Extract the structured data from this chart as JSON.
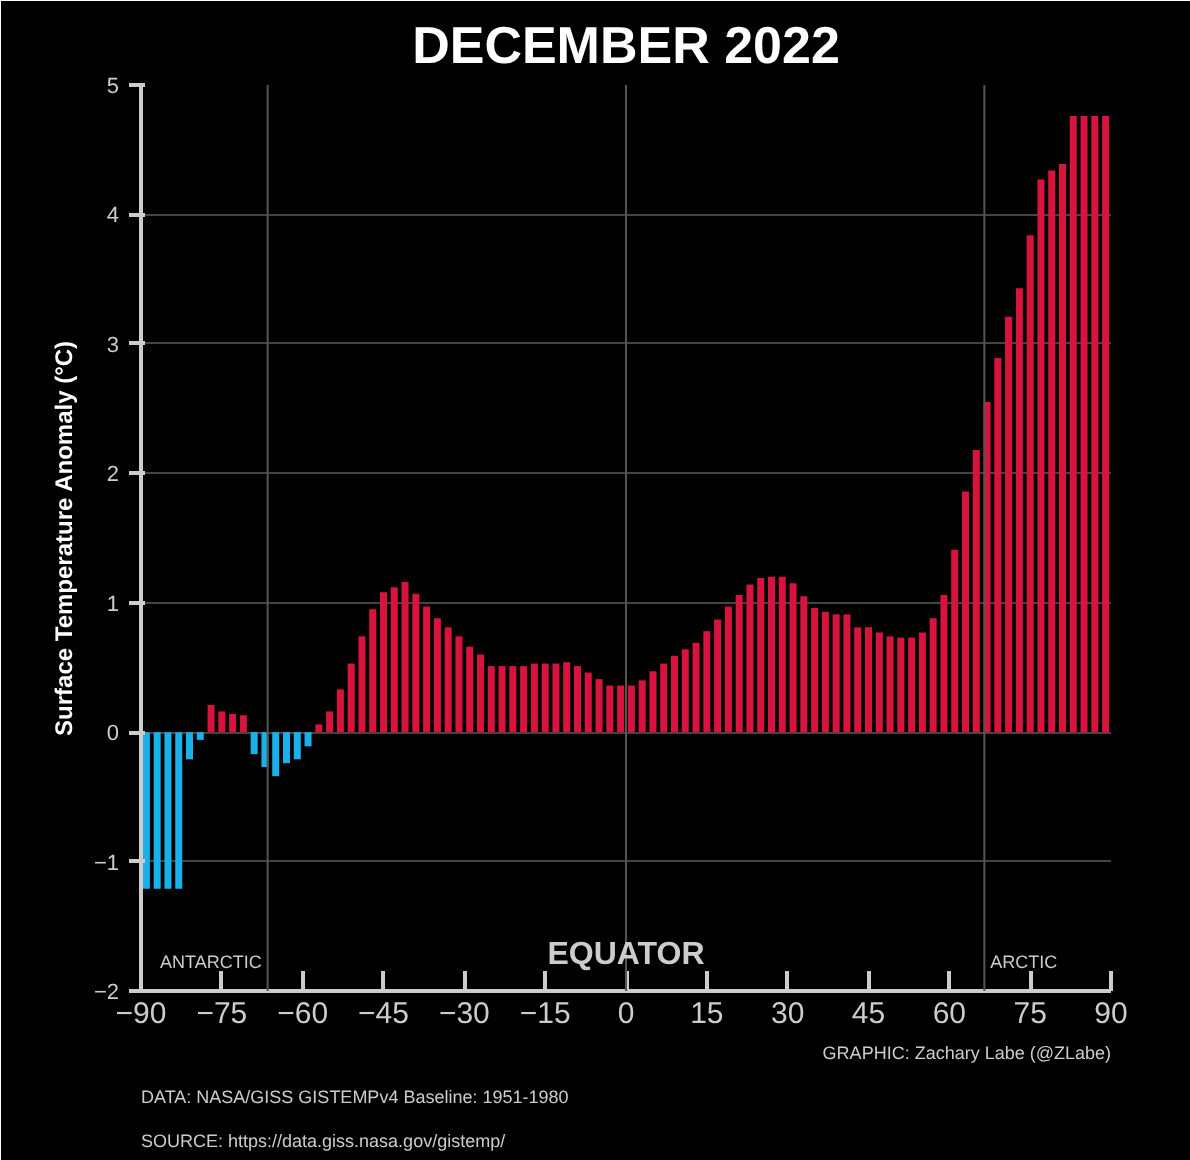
{
  "chart_data": {
    "type": "bar",
    "title": "DECEMBER 2022",
    "ylabel": "Surface Temperature Anomaly (°C)",
    "x": [
      -89,
      -87,
      -85,
      -83,
      -81,
      -79,
      -77,
      -75,
      -73,
      -71,
      -69,
      -67,
      -65,
      -63,
      -61,
      -59,
      -57,
      -55,
      -53,
      -51,
      -49,
      -47,
      -45,
      -43,
      -41,
      -39,
      -37,
      -35,
      -33,
      -31,
      -29,
      -27,
      -25,
      -23,
      -21,
      -19,
      -17,
      -15,
      -13,
      -11,
      -9,
      -7,
      -5,
      -3,
      -1,
      1,
      3,
      5,
      7,
      9,
      11,
      13,
      15,
      17,
      19,
      21,
      23,
      25,
      27,
      29,
      31,
      33,
      35,
      37,
      39,
      41,
      43,
      45,
      47,
      49,
      51,
      53,
      55,
      57,
      59,
      61,
      63,
      65,
      67,
      69,
      71,
      73,
      75,
      77,
      79,
      81,
      83,
      85,
      87,
      89
    ],
    "values": [
      -1.21,
      -1.21,
      -1.21,
      -1.21,
      -0.21,
      -0.06,
      0.21,
      0.16,
      0.14,
      0.13,
      -0.17,
      -0.27,
      -0.34,
      -0.24,
      -0.21,
      -0.11,
      0.06,
      0.16,
      0.33,
      0.53,
      0.74,
      0.95,
      1.08,
      1.12,
      1.16,
      1.07,
      0.97,
      0.88,
      0.81,
      0.74,
      0.66,
      0.6,
      0.51,
      0.51,
      0.51,
      0.51,
      0.53,
      0.53,
      0.53,
      0.54,
      0.51,
      0.46,
      0.41,
      0.36,
      0.36,
      0.36,
      0.4,
      0.47,
      0.53,
      0.59,
      0.64,
      0.69,
      0.78,
      0.87,
      0.97,
      1.06,
      1.14,
      1.19,
      1.2,
      1.2,
      1.15,
      1.05,
      0.96,
      0.93,
      0.91,
      0.91,
      0.81,
      0.81,
      0.77,
      0.74,
      0.73,
      0.73,
      0.77,
      0.88,
      1.06,
      1.41,
      1.86,
      2.18,
      2.55,
      2.89,
      3.21,
      3.43,
      3.84,
      4.27,
      4.34,
      4.39,
      4.76,
      4.76,
      4.76,
      4.76
    ],
    "colors": [
      "#1ab0ea",
      "#1ab0ea",
      "#1ab0ea",
      "#1ab0ea",
      "#1ab0ea",
      "#1ab0ea",
      "#d8143e",
      "#d8143e",
      "#d8143e",
      "#d8143e",
      "#1ab0ea",
      "#1ab0ea",
      "#1ab0ea",
      "#1ab0ea",
      "#1ab0ea",
      "#1ab0ea",
      "#d8143e",
      "#d8143e",
      "#d8143e",
      "#d8143e",
      "#d8143e",
      "#d8143e",
      "#d8143e",
      "#d8143e",
      "#d8143e",
      "#d8143e",
      "#d8143e",
      "#d8143e",
      "#d8143e",
      "#d8143e",
      "#d8143e",
      "#d8143e",
      "#d8143e",
      "#d8143e",
      "#d8143e",
      "#d8143e",
      "#d8143e",
      "#d8143e",
      "#d8143e",
      "#d8143e",
      "#d8143e",
      "#d8143e",
      "#d8143e",
      "#d8143e",
      "#d8143e",
      "#d8143e",
      "#d8143e",
      "#d8143e",
      "#d8143e",
      "#d8143e",
      "#d8143e",
      "#d8143e",
      "#d8143e",
      "#d8143e",
      "#d8143e",
      "#d8143e",
      "#d8143e",
      "#d8143e",
      "#d8143e",
      "#d8143e",
      "#d8143e",
      "#d8143e",
      "#d8143e",
      "#d8143e",
      "#d8143e",
      "#d8143e",
      "#d8143e",
      "#d8143e",
      "#d8143e",
      "#d8143e",
      "#d8143e",
      "#d8143e",
      "#d8143e",
      "#d8143e",
      "#d8143e",
      "#d8143e",
      "#d8143e",
      "#d8143e",
      "#d8143e",
      "#d8143e",
      "#d8143e",
      "#d8143e",
      "#d8143e",
      "#d8143e",
      "#d8143e",
      "#d8143e",
      "#d8143e",
      "#d8143e",
      "#d8143e",
      "#d8143e"
    ],
    "xlim": [
      -90,
      90
    ],
    "xticks": [
      -90,
      -75,
      -60,
      -45,
      -30,
      -15,
      0,
      15,
      30,
      45,
      60,
      75,
      90
    ],
    "ylim": [
      -2,
      5
    ],
    "yticks": [
      -2,
      -1,
      0,
      1,
      2,
      3,
      4,
      5
    ],
    "grid": "y",
    "ref_lines": [
      {
        "axis": "x",
        "value": -66.5,
        "label": "ANTARCTIC"
      },
      {
        "axis": "x",
        "value": 0,
        "label": "EQUATOR"
      },
      {
        "axis": "x",
        "value": 66.5,
        "label": "ARCTIC"
      }
    ],
    "annotations": [
      "SOURCE: https://data.giss.nasa.gov/gistemp/",
      "DATA: NASA/GISS GISTEMPv4 Baseline: 1951-1980",
      "GRAPHIC: Zachary Labe (@ZLabe)"
    ]
  }
}
